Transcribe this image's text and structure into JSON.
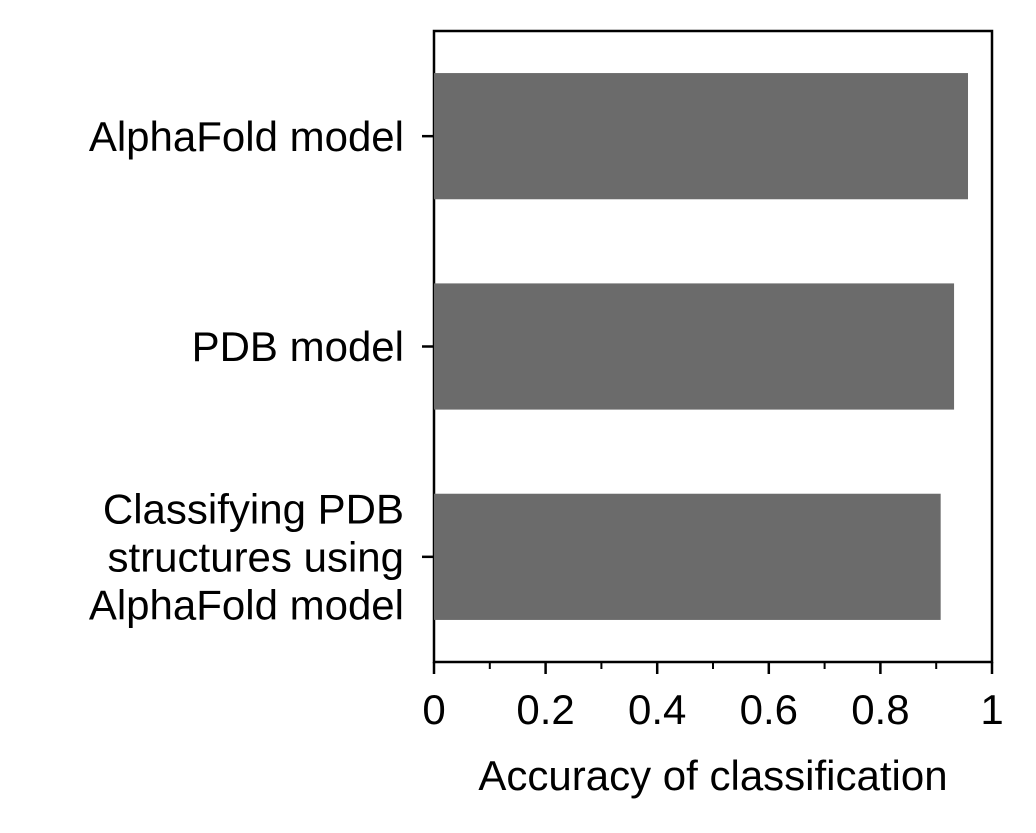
{
  "chart_data": {
    "type": "bar",
    "orientation": "horizontal",
    "categories": [
      "AlphaFold model",
      "PDB model",
      "Classifying PDB\nstructures using\nAlphaFold model"
    ],
    "values": [
      0.957,
      0.932,
      0.908
    ],
    "xlabel": "Accuracy of classification",
    "ylabel": "",
    "xlim": [
      0,
      1
    ],
    "xticks": [
      {
        "value": 0,
        "label": "0"
      },
      {
        "value": 0.2,
        "label": "0.2"
      },
      {
        "value": 0.4,
        "label": "0.4"
      },
      {
        "value": 0.6,
        "label": "0.6"
      },
      {
        "value": 0.8,
        "label": "0.8"
      },
      {
        "value": 1,
        "label": "1"
      }
    ],
    "minor_xticks": [
      0.1,
      0.3,
      0.5,
      0.7,
      0.9
    ],
    "grid": false,
    "legend": "none",
    "bar_color": "#6b6b6b",
    "axis_color": "#000000"
  }
}
